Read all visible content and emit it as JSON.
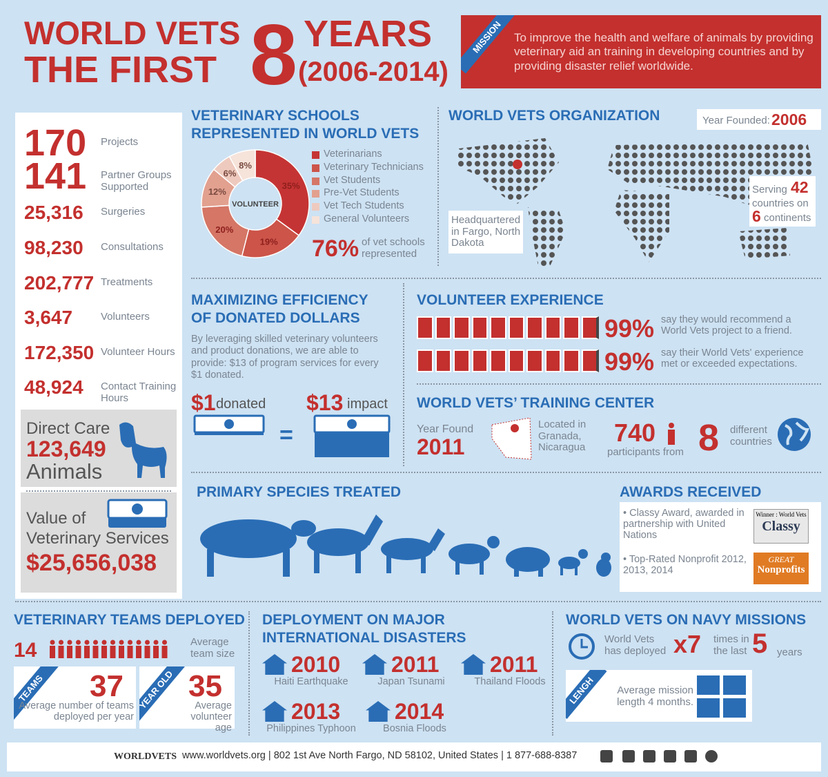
{
  "header": {
    "title_line1": "WORLD VETS",
    "title_line2": "THE FIRST",
    "big_number": "8",
    "years": "YEARS",
    "range": "(2006-2014)",
    "mission_tag": "MISSION",
    "mission": "To improve the health and welfare of animals by providing veterinary aid an training in developing countries and by providing disaster relief worldwide."
  },
  "stats": [
    {
      "value": "170",
      "label": "Projects"
    },
    {
      "value": "141",
      "label": "Partner Groups Supported"
    },
    {
      "value": "25,316",
      "label": "Surgeries"
    },
    {
      "value": "98,230",
      "label": "Consultations"
    },
    {
      "value": "202,777",
      "label": "Treatments"
    },
    {
      "value": "3,647",
      "label": "Volunteers"
    },
    {
      "value": "172,350",
      "label": "Volunteer Hours"
    },
    {
      "value": "48,924",
      "label": "Contact Training Hours"
    }
  ],
  "direct_care": {
    "line1": "Direct Care",
    "value": "123,649",
    "line2": "Animals"
  },
  "services": {
    "line1": "Value of",
    "line2": "Veterinary Services",
    "value": "$25,656,038"
  },
  "schools": {
    "title": "VETERINARY SCHOOLS REPRESENTED IN WORLD VETS",
    "chart_data": {
      "type": "donut",
      "center_label": "VOLUNTEER",
      "categories": [
        "Veterinarians",
        "Veterinary Technicians",
        "Vet Students",
        "Pre-Vet Students",
        "Vet Tech Students",
        "General Volunteers"
      ],
      "values": [
        35,
        19,
        20,
        12,
        6,
        8
      ],
      "value_labels": [
        "35%",
        "19%",
        "20%",
        "12%",
        "6%",
        "8%"
      ],
      "colors": [
        "#c53434",
        "#cc5449",
        "#d57666",
        "#e2a08f",
        "#eecabe",
        "#f6e3da"
      ]
    },
    "stat_value": "76%",
    "stat_text": "of vet schools represented"
  },
  "organization": {
    "title": "WORLD VETS ORGANIZATION",
    "founded_label": "Year Founded:",
    "founded": "2006",
    "hq": "Headquartered in Fargo, North Dakota",
    "serving": "Serving",
    "countries": "42",
    "countries_on": "countries on",
    "continents": "6",
    "continents_text": "continents"
  },
  "efficiency": {
    "title": "MAXIMIZING EFFICIENCY OF DONATED DOLLARS",
    "text": "By leveraging skilled veterinary volunteers and product donations, we are able to provide: $13 of program services for every $1 donated.",
    "donated_value": "$1",
    "donated": "donated",
    "impact_value": "$13",
    "impact": "impact",
    "equals": "="
  },
  "volunteer": {
    "title": "VOLUNTEER EXPERIENCE",
    "items": [
      {
        "value": "99%",
        "text": "say they would recommend a World Vets project to a friend."
      },
      {
        "value": "99%",
        "text": "say their World Vets' experience met or exceeded expectations."
      }
    ]
  },
  "training": {
    "title": "WORLD VETS’ TRAINING CENTER",
    "year_label": "Year Found",
    "year": "2011",
    "location": "Located in Granada, Nicaragua",
    "participants": "740",
    "participants_text": "participants from",
    "countries": "8",
    "countries_text": "different countries"
  },
  "species": {
    "title": "PRIMARY SPECIES TREATED"
  },
  "awards": {
    "title": "AWARDS RECEIVED",
    "items": [
      "Classy Award, awarded in partnership with United Nations",
      "Top-Rated Nonprofit 2012, 2013, 2014"
    ],
    "badge1_top": "Winner : World Vets",
    "badge1_main": "Classy",
    "badge2_top": "GREAT",
    "badge2_main": "Nonprofits"
  },
  "teams": {
    "title": "VETERINARY TEAMS DEPLOYED",
    "size": "14",
    "size_text": "Average team size",
    "teams_tag": "TEAMS",
    "teams": "37",
    "teams_text": "Average number of teams deployed per year",
    "age_tag": "YEAR OLD",
    "age": "35",
    "age_text": "Average volunteer age"
  },
  "disasters": {
    "title": "DEPLOYMENT ON MAJOR INTERNATIONAL DISASTERS",
    "items": [
      {
        "year": "2010",
        "name": "Haiti Earthquake"
      },
      {
        "year": "2011",
        "name": "Japan Tsunami"
      },
      {
        "year": "2011",
        "name": "Thailand Floods"
      },
      {
        "year": "2013",
        "name": "Philippines Typhoon"
      },
      {
        "year": "2014",
        "name": "Bosnia Floods"
      }
    ]
  },
  "navy": {
    "title": "WORLD VETS ON NAVY MISSIONS",
    "deployed": "World Vets has deployed",
    "times": "x7",
    "times_text": "times in the last",
    "years": "5",
    "years_text": "years",
    "length_tag": "LENGH",
    "length_text": "Average mission length 4 months."
  },
  "footer": {
    "logo": "WORLDVETS",
    "text": "www.worldvets.org | 802 1st Ave North Fargo, ND 58102, United States | 1 877-688-8387"
  }
}
